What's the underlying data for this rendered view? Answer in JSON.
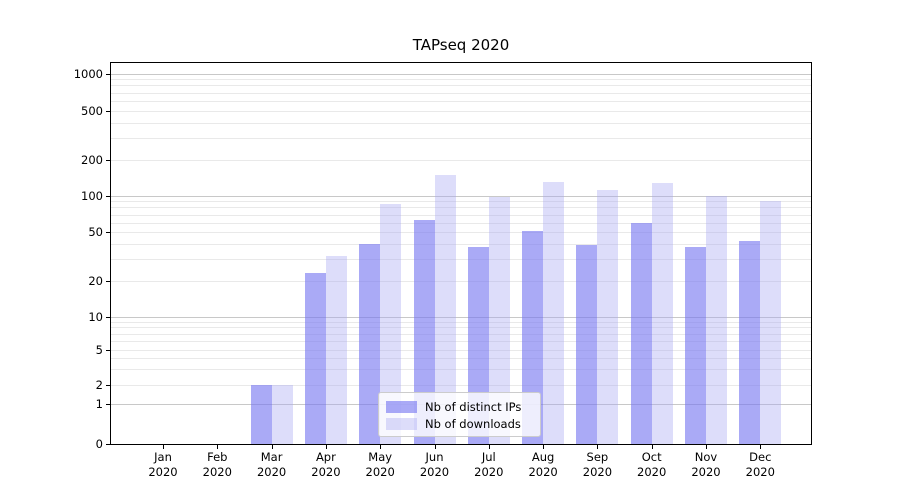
{
  "title": "TAPseq 2020",
  "chart_data": {
    "type": "bar",
    "title": "TAPseq 2020",
    "categories": [
      "Jan 2020",
      "Feb 2020",
      "Mar 2020",
      "Apr 2020",
      "May 2020",
      "Jun 2020",
      "Jul 2020",
      "Aug 2020",
      "Sep 2020",
      "Oct 2020",
      "Nov 2020",
      "Dec 2020"
    ],
    "series": [
      {
        "name": "Nb of distinct IPs",
        "color": "rgba(118,118,240,0.62)",
        "values": [
          0,
          0,
          2,
          23,
          40,
          63,
          38,
          51,
          39,
          60,
          38,
          42
        ]
      },
      {
        "name": "Nb of downloads",
        "color": "rgba(165,165,243,0.38)",
        "values": [
          0,
          0,
          2,
          32,
          85,
          150,
          97,
          130,
          112,
          128,
          100,
          90
        ]
      }
    ],
    "xlabel": "",
    "ylabel": "",
    "yscale": "symlog",
    "yticks": [
      0,
      1,
      2,
      5,
      10,
      20,
      50,
      100,
      200,
      500,
      1000
    ],
    "ylim": [
      0,
      1000
    ],
    "grid": "horizontal major and minor gridlines",
    "legend_position": "lower center inside plot"
  },
  "legend": {
    "items": [
      {
        "label": "Nb of distinct IPs"
      },
      {
        "label": "Nb of downloads"
      }
    ]
  },
  "colors": {
    "bar_distinct_ips_flat": "#a6a6f2",
    "bar_downloads_flat": "#dcdcf8",
    "grid_major": "#c8c8c8",
    "grid_minor": "#e9e9e9",
    "axis": "#000000",
    "background": "#ffffff",
    "legend_border": "#cccccc"
  }
}
